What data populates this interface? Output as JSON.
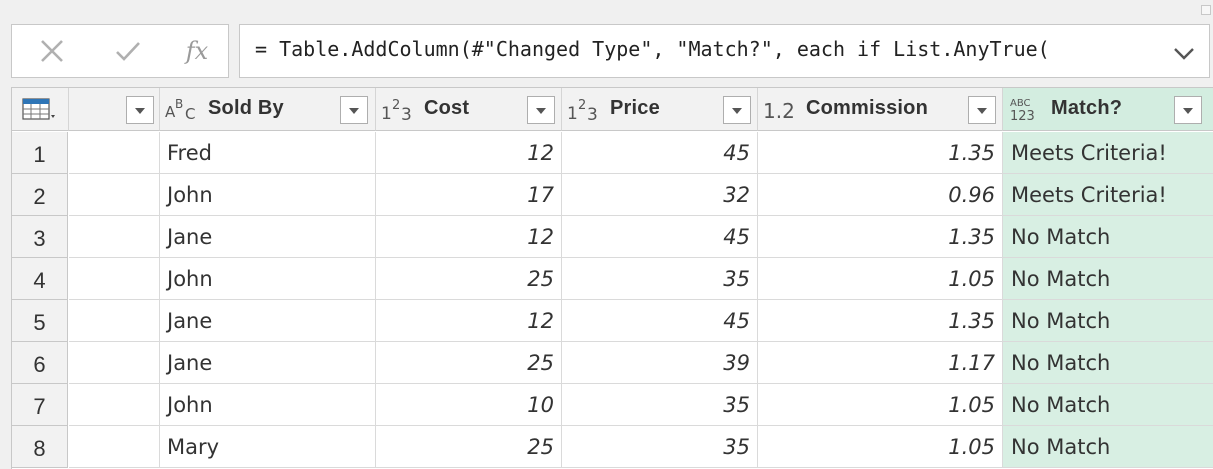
{
  "formula_bar": {
    "cancel_icon": "close-icon",
    "commit_icon": "check-icon",
    "fx_label": "fx",
    "formula": "= Table.AddColumn(#\"Changed Type\", \"Match?\", each if List.AnyTrue(",
    "expand_icon": "chevron-down-icon"
  },
  "grid": {
    "corner_icon": "table-icon",
    "columns": [
      {
        "type_icon": "",
        "label": ""
      },
      {
        "type_icon": "ABC-text-type-icon",
        "label": "Sold By"
      },
      {
        "type_icon": "123-whole-number-type-icon",
        "label": "Cost"
      },
      {
        "type_icon": "123-whole-number-type-icon",
        "label": "Price"
      },
      {
        "type_icon": "decimal-number-type-icon",
        "label": "Commission"
      },
      {
        "type_icon": "any-type-icon",
        "label": "Match?"
      }
    ],
    "rows": [
      {
        "n": "1",
        "sold_by": "Fred",
        "cost": "12",
        "price": "45",
        "commission": "1.35",
        "match": "Meets Criteria!"
      },
      {
        "n": "2",
        "sold_by": "John",
        "cost": "17",
        "price": "32",
        "commission": "0.96",
        "match": "Meets Criteria!"
      },
      {
        "n": "3",
        "sold_by": "Jane",
        "cost": "12",
        "price": "45",
        "commission": "1.35",
        "match": "No Match"
      },
      {
        "n": "4",
        "sold_by": "John",
        "cost": "25",
        "price": "35",
        "commission": "1.05",
        "match": "No Match"
      },
      {
        "n": "5",
        "sold_by": "Jane",
        "cost": "12",
        "price": "45",
        "commission": "1.35",
        "match": "No Match"
      },
      {
        "n": "6",
        "sold_by": "Jane",
        "cost": "25",
        "price": "39",
        "commission": "1.17",
        "match": "No Match"
      },
      {
        "n": "7",
        "sold_by": "John",
        "cost": "10",
        "price": "35",
        "commission": "1.05",
        "match": "No Match"
      },
      {
        "n": "8",
        "sold_by": "Mary",
        "cost": "25",
        "price": "35",
        "commission": "1.05",
        "match": "No Match"
      }
    ]
  },
  "colors": {
    "selected_column_header": "#d3ede0",
    "selected_column_cells": "#d8efe3",
    "header_bg": "#f2f2f2",
    "border": "#c8c8c8"
  }
}
